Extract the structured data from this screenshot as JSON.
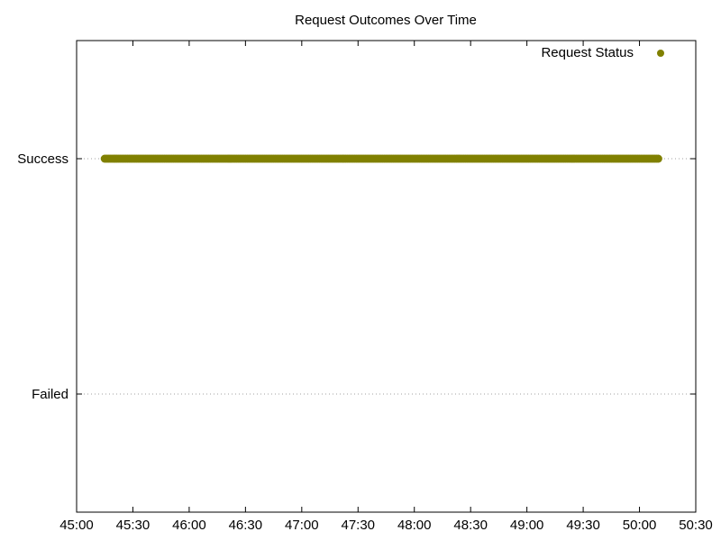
{
  "chart_data": {
    "type": "scatter",
    "title": "Request Outcomes Over Time",
    "xlabel": "",
    "ylabel": "",
    "x_unit": "mm:ss",
    "xlim": [
      "45:00",
      "50:30"
    ],
    "x_ticks": [
      "45:00",
      "45:30",
      "46:00",
      "46:30",
      "47:00",
      "47:30",
      "48:00",
      "48:30",
      "49:00",
      "49:30",
      "50:00",
      "50:30"
    ],
    "y_categories": [
      "Failed",
      "Success"
    ],
    "grid": "horizontal dotted lines at category ticks",
    "legend_position": "top-right",
    "series": [
      {
        "name": "Request Status",
        "color": "#808000",
        "marker": "circle",
        "points": [
          {
            "x": "45:15",
            "y": "Success"
          },
          {
            "x": "45:30",
            "y": "Success"
          },
          {
            "x": "45:45",
            "y": "Success"
          },
          {
            "x": "46:00",
            "y": "Success"
          },
          {
            "x": "46:15",
            "y": "Success"
          },
          {
            "x": "46:30",
            "y": "Success"
          },
          {
            "x": "46:45",
            "y": "Success"
          },
          {
            "x": "47:00",
            "y": "Success"
          },
          {
            "x": "47:15",
            "y": "Success"
          },
          {
            "x": "47:30",
            "y": "Success"
          },
          {
            "x": "47:45",
            "y": "Success"
          },
          {
            "x": "48:00",
            "y": "Success"
          },
          {
            "x": "48:15",
            "y": "Success"
          },
          {
            "x": "48:30",
            "y": "Success"
          },
          {
            "x": "48:45",
            "y": "Success"
          },
          {
            "x": "49:00",
            "y": "Success"
          },
          {
            "x": "49:15",
            "y": "Success"
          },
          {
            "x": "49:30",
            "y": "Success"
          },
          {
            "x": "49:45",
            "y": "Success"
          },
          {
            "x": "50:00",
            "y": "Success"
          },
          {
            "x": "50:10",
            "y": "Success"
          }
        ]
      }
    ]
  }
}
